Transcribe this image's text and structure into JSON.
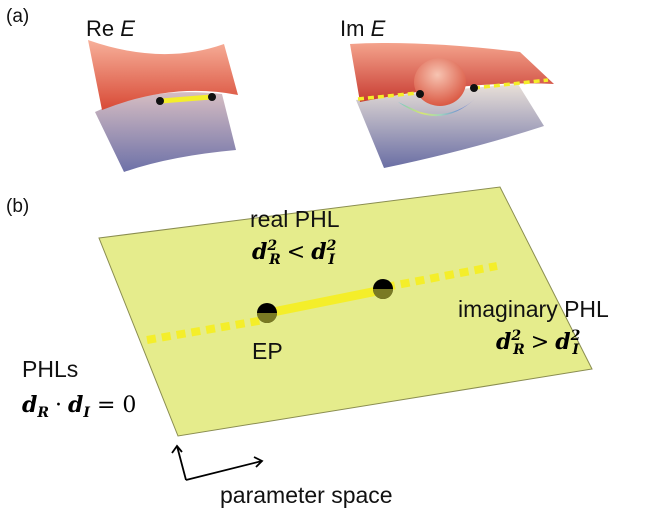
{
  "panel_a": {
    "tag": "(a)",
    "re_label": {
      "prefix": "Re ",
      "var": "E"
    },
    "im_label": {
      "prefix": "Im ",
      "var": "E"
    }
  },
  "panel_b": {
    "tag": "(b)",
    "real_phl": {
      "title": "real PHL",
      "condition": {
        "lhs": "d",
        "lhs_sub": "R",
        "lhs_sup": "2",
        "op": "<",
        "rhs": "d",
        "rhs_sub": "I",
        "rhs_sup": "2"
      }
    },
    "imaginary_phl": {
      "title": "imaginary PHL",
      "condition": {
        "lhs": "d",
        "lhs_sub": "R",
        "lhs_sup": "2",
        "op": ">",
        "rhs": "d",
        "rhs_sub": "I",
        "rhs_sup": "2"
      }
    },
    "ep_label": "EP",
    "phls": {
      "title": "PHLs",
      "condition": {
        "lhs": "d",
        "lhs_sub": "R",
        "op": "·",
        "rhs": "d",
        "rhs_sub": "I",
        "eq": "= 0"
      }
    },
    "axis_label": "parameter space",
    "colors": {
      "plane": "#e5ec8c",
      "plane_edge": "#8a8d50",
      "phl_yellow": "#f4ee2a",
      "ep_dot": "#000000"
    }
  }
}
